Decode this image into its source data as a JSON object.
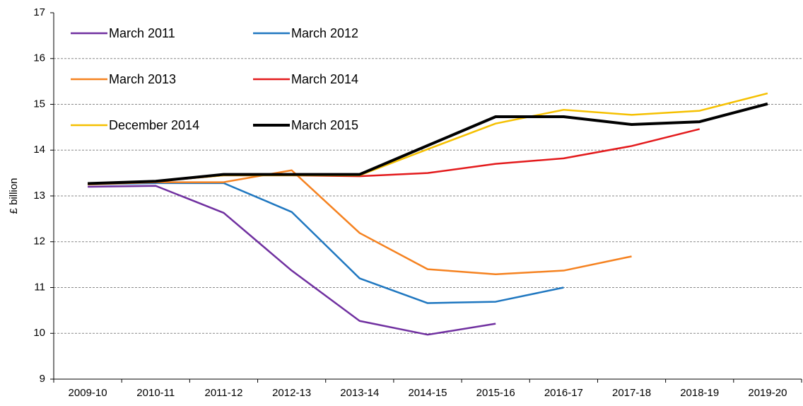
{
  "chart_data": {
    "type": "line",
    "y_label": "£ billion",
    "categories": [
      "2009-10",
      "2010-11",
      "2011-12",
      "2012-13",
      "2013-14",
      "2014-15",
      "2015-16",
      "2016-17",
      "2017-18",
      "2018-19",
      "2019-20"
    ],
    "series": [
      {
        "name": "March 2011",
        "color": "#7030a0",
        "width": 2.5,
        "values": [
          13.2,
          13.22,
          12.63,
          11.37,
          10.27,
          9.97,
          10.21,
          null,
          null,
          null,
          null
        ]
      },
      {
        "name": "March 2012",
        "color": "#1f77c0",
        "width": 2.5,
        "values": [
          13.25,
          13.28,
          13.28,
          12.65,
          11.2,
          10.66,
          10.69,
          11.0,
          null,
          null,
          null
        ]
      },
      {
        "name": "March 2013",
        "color": "#f58220",
        "width": 2.5,
        "values": [
          13.25,
          13.3,
          13.3,
          13.56,
          12.19,
          11.4,
          11.29,
          11.37,
          11.68,
          null,
          null
        ]
      },
      {
        "name": "March 2014",
        "color": "#e31a1c",
        "width": 2.5,
        "values": [
          13.27,
          13.32,
          13.45,
          13.45,
          13.43,
          13.5,
          13.7,
          13.82,
          14.09,
          14.46,
          null
        ]
      },
      {
        "name": "December 2014",
        "color": "#f5c000",
        "width": 2.5,
        "values": [
          13.27,
          13.32,
          13.45,
          13.45,
          13.45,
          14.02,
          14.58,
          14.88,
          14.77,
          14.86,
          15.24
        ]
      },
      {
        "name": "March 2015",
        "color": "#000000",
        "width": 4,
        "values": [
          13.27,
          13.32,
          13.47,
          13.47,
          13.47,
          14.1,
          14.73,
          14.73,
          14.56,
          14.62,
          15.01
        ]
      }
    ],
    "ylim": [
      9,
      17
    ],
    "yticks": [
      9,
      10,
      11,
      12,
      13,
      14,
      15,
      16,
      17
    ],
    "grid": true
  }
}
